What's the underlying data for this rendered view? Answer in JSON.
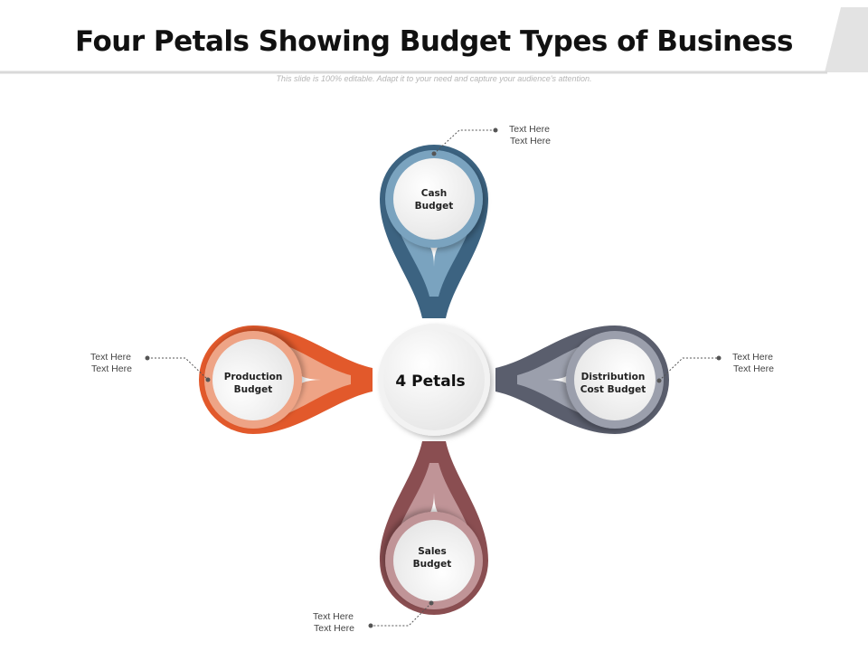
{
  "title": "Four Petals Showing Budget Types of Business",
  "subtitle": "This slide is 100% editable. Adapt it to your need and capture your audience's attention.",
  "center": {
    "label": "4 Petals"
  },
  "petals": [
    {
      "line1": "Cash",
      "line2": "Budget",
      "note1": "Text Here",
      "note2": "Text Here",
      "dark": "#3c6381",
      "light": "#7aa3bf"
    },
    {
      "line1": "Production",
      "line2": "Budget",
      "note1": "Text Here",
      "note2": "Text Here",
      "dark": "#e2592b",
      "light": "#eea486"
    },
    {
      "line1": "Distribution",
      "line2": "Cost Budget",
      "note1": "Text Here",
      "note2": "Text Here",
      "dark": "#5a5e6d",
      "light": "#9b9fac"
    },
    {
      "line1": "Sales",
      "line2": "Budget",
      "note1": "Text Here",
      "note2": "Text Here",
      "dark": "#8a4e51",
      "light": "#c09497"
    }
  ]
}
